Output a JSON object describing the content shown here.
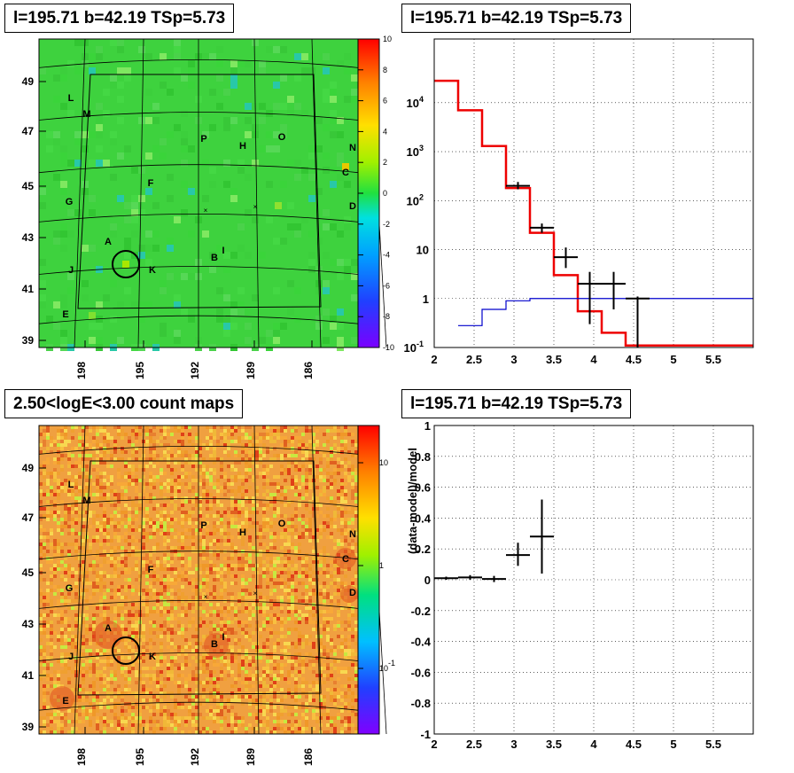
{
  "panels": {
    "ts_map_title": "l=195.71 b=42.19 TSp=5.73",
    "spectrum_title": "l=195.71 b=42.19 TSp=5.73",
    "count_map_title": "2.50<logE<3.00 count maps",
    "residual_title": "l=195.71 b=42.19 TSp=5.73"
  },
  "colors": {
    "model_line": "#ee0000",
    "background_line": "#0000cc",
    "data": "#000000",
    "grid": "#000000"
  },
  "chart_data": [
    {
      "type": "heatmap",
      "name": "ts-map",
      "title": "l=195.71 b=42.19 TSp=5.73",
      "x_ticks": [
        "198",
        "195",
        "192",
        "189",
        "186"
      ],
      "y_ticks": [
        "39",
        "41",
        "43",
        "45",
        "47",
        "49"
      ],
      "colorbar_ticks": [
        "10",
        "8",
        "6",
        "4",
        "2",
        "0",
        "-2",
        "-4",
        "-6",
        "-8",
        "-10"
      ],
      "colorbar_range": [
        -10,
        10
      ],
      "source_labels": [
        "L",
        "M",
        "P",
        "H",
        "O",
        "N",
        "C",
        "F",
        "G",
        "D",
        "A",
        "I",
        "B",
        "J",
        "K",
        "E"
      ],
      "dominant_color": "green"
    },
    {
      "type": "line",
      "name": "spectrum",
      "title": "l=195.71 b=42.19 TSp=5.73",
      "xlim": [
        2,
        6
      ],
      "ylim": [
        0.1,
        100000
      ],
      "yscale": "log",
      "x_ticks": [
        "2",
        "2.5",
        "3",
        "3.5",
        "4",
        "4.5",
        "5",
        "5.5"
      ],
      "y_ticks": [
        "10^-1",
        "1",
        "10",
        "10^2",
        "10^3",
        "10^4"
      ],
      "grid": true,
      "series": [
        {
          "style": "step",
          "color": "#ee0000",
          "bin_edges": [
            2.0,
            2.3,
            2.6,
            2.9,
            3.2,
            3.5,
            3.8,
            4.1,
            4.4,
            6.0
          ],
          "values": [
            28000,
            7000,
            1300,
            180,
            22,
            3,
            0.55,
            0.2,
            0.11
          ]
        },
        {
          "style": "step",
          "color": "#0000cc",
          "bin_edges": [
            2.3,
            2.6,
            2.9,
            3.2,
            6.0
          ],
          "values": [
            0.28,
            0.6,
            0.9,
            1.0
          ]
        },
        {
          "style": "errorbar",
          "color": "#000000",
          "x": [
            3.05,
            3.35,
            3.65,
            3.95,
            4.25,
            4.55
          ],
          "xerr": [
            0.15,
            0.15,
            0.15,
            0.15,
            0.15,
            0.15
          ],
          "y": [
            200,
            28,
            7,
            2,
            2,
            1
          ],
          "ylow": [
            170,
            22,
            4.2,
            0.3,
            0.6,
            0.1
          ],
          "yhigh": [
            240,
            34,
            11,
            3.5,
            3.5,
            1.1
          ]
        }
      ]
    },
    {
      "type": "heatmap",
      "name": "count-map",
      "title": "2.50<logE<3.00 count maps",
      "x_ticks": [
        "198",
        "195",
        "192",
        "189",
        "186"
      ],
      "y_ticks": [
        "39",
        "41",
        "43",
        "45",
        "47",
        "49"
      ],
      "colorbar_ticks": [
        "10",
        "1",
        "10^-1"
      ],
      "colorbar_scale": "log",
      "source_labels": [
        "L",
        "M",
        "P",
        "H",
        "O",
        "N",
        "C",
        "F",
        "G",
        "D",
        "A",
        "I",
        "B",
        "J",
        "K",
        "E"
      ],
      "dominant_color": "orange"
    },
    {
      "type": "scatter",
      "name": "residuals",
      "title": "l=195.71 b=42.19 TSp=5.73",
      "ylabel": "(data-model)/model",
      "xlim": [
        2,
        6
      ],
      "ylim": [
        -1,
        1
      ],
      "x_ticks": [
        "2",
        "2.5",
        "3",
        "3.5",
        "4",
        "4.5",
        "5",
        "5.5"
      ],
      "y_ticks": [
        "1",
        "0.8",
        "0.6",
        "0.4",
        "0.2",
        "0",
        "-0.2",
        "-0.4",
        "-0.6",
        "-0.8",
        "-1"
      ],
      "grid": true,
      "series": [
        {
          "style": "errorbar",
          "color": "#000000",
          "x": [
            2.15,
            2.45,
            2.75,
            3.05,
            3.35
          ],
          "xerr": [
            0.15,
            0.15,
            0.15,
            0.15,
            0.15
          ],
          "y": [
            0.01,
            0.015,
            0.005,
            0.16,
            0.28
          ],
          "ylow": [
            0.0,
            0.0,
            -0.015,
            0.09,
            0.04
          ],
          "yhigh": [
            0.02,
            0.03,
            0.025,
            0.24,
            0.52
          ]
        }
      ]
    }
  ]
}
